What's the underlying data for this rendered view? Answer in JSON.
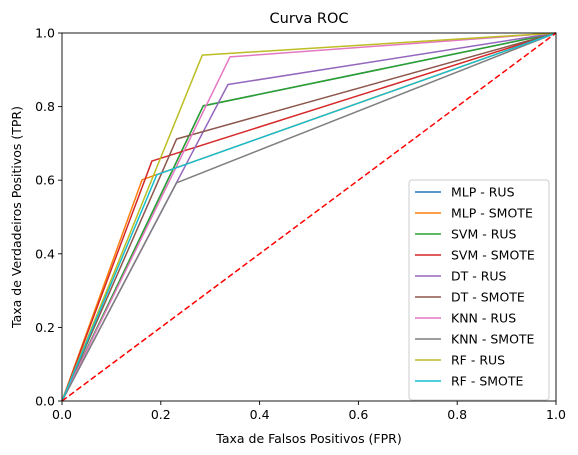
{
  "chart_data": {
    "type": "line",
    "title": "Curva ROC",
    "xlabel": "Taxa de Falsos Positivos (FPR)",
    "ylabel": "Taxa de Verdadeiros Positivos (TPR)",
    "xlim": [
      0,
      1
    ],
    "ylim": [
      0,
      1
    ],
    "xticks": [
      "0.0",
      "0.2",
      "0.4",
      "0.6",
      "0.8",
      "1.0"
    ],
    "yticks": [
      "0.0",
      "0.2",
      "0.4",
      "0.6",
      "0.8",
      "1.0"
    ],
    "grid": false,
    "legend_position": "lower-right",
    "series": [
      {
        "name": "MLP - RUS",
        "color": "#1f77b4",
        "x": [
          0,
          0.286,
          1
        ],
        "y": [
          0,
          0.802,
          1
        ]
      },
      {
        "name": "MLP - SMOTE",
        "color": "#ff7f0e",
        "x": [
          0,
          0.162,
          1
        ],
        "y": [
          0,
          0.601,
          1
        ]
      },
      {
        "name": "SVM - RUS",
        "color": "#2ca02c",
        "x": [
          0,
          0.286,
          1
        ],
        "y": [
          0,
          0.802,
          1
        ]
      },
      {
        "name": "SVM - SMOTE",
        "color": "#d62728",
        "x": [
          0,
          0.182,
          1
        ],
        "y": [
          0,
          0.652,
          1
        ]
      },
      {
        "name": "DT - RUS",
        "color": "#9467bd",
        "x": [
          0,
          0.336,
          1
        ],
        "y": [
          0,
          0.86,
          1
        ]
      },
      {
        "name": "DT - SMOTE",
        "color": "#8c564b",
        "x": [
          0,
          0.232,
          1
        ],
        "y": [
          0,
          0.712,
          1
        ]
      },
      {
        "name": "KNN - RUS",
        "color": "#e377c2",
        "x": [
          0,
          0.34,
          1
        ],
        "y": [
          0,
          0.935,
          1
        ]
      },
      {
        "name": "KNN - SMOTE",
        "color": "#7f7f7f",
        "x": [
          0,
          0.232,
          1
        ],
        "y": [
          0,
          0.593,
          1
        ]
      },
      {
        "name": "RF - RUS",
        "color": "#bcbd22",
        "x": [
          0,
          0.284,
          1
        ],
        "y": [
          0,
          0.94,
          1
        ]
      },
      {
        "name": "RF - SMOTE",
        "color": "#17becf",
        "x": [
          0,
          0.192,
          1
        ],
        "y": [
          0,
          0.615,
          1
        ]
      }
    ],
    "reference_line": {
      "x": [
        0,
        1
      ],
      "y": [
        0,
        1
      ],
      "color": "#ff0000",
      "style": "dashed"
    }
  }
}
